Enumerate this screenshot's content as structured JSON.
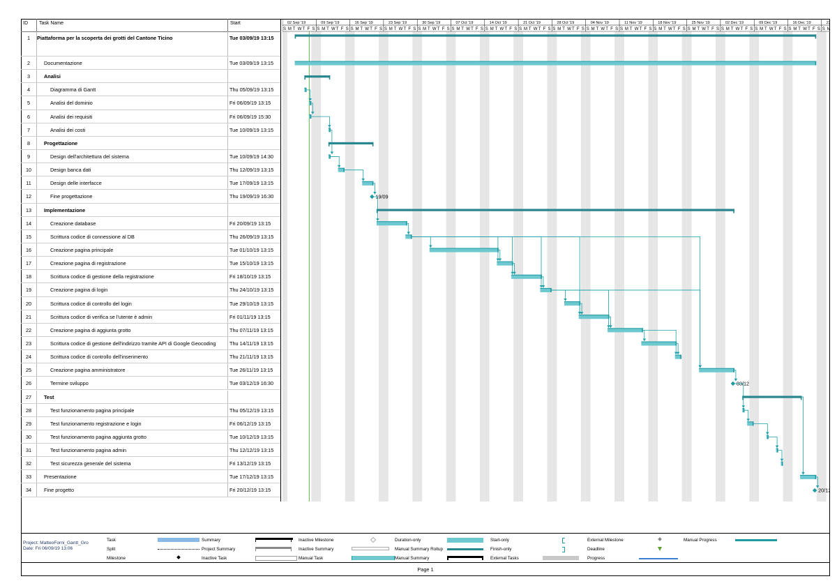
{
  "table": {
    "headers": {
      "id": "ID",
      "name": "Task Name",
      "start": "Start"
    },
    "rows": [
      {
        "id": "1",
        "name": "Piattaforma per la scoperta dei grotti del Cantone Ticino",
        "start": "Tue 03/09/19 13:15",
        "level": 0,
        "bold": true
      },
      {
        "id": "2",
        "name": "Documentazione",
        "start": "Tue 03/09/19 13:15",
        "level": 1,
        "bold": false
      },
      {
        "id": "3",
        "name": "Analisi",
        "start": "",
        "level": 1,
        "bold": true
      },
      {
        "id": "4",
        "name": "Diagramma di Gantt",
        "start": "Thu 05/09/19 13:15",
        "level": 2,
        "bold": false
      },
      {
        "id": "5",
        "name": "Analisi del dominio",
        "start": "Fri 06/09/19 13:15",
        "level": 2,
        "bold": false
      },
      {
        "id": "6",
        "name": "Analisi dei requisiti",
        "start": "Fri 06/09/19 15:30",
        "level": 2,
        "bold": false
      },
      {
        "id": "7",
        "name": "Analisi dei costi",
        "start": "Tue 10/09/19 13:15",
        "level": 2,
        "bold": false
      },
      {
        "id": "8",
        "name": "Progettazione",
        "start": "",
        "level": 1,
        "bold": true
      },
      {
        "id": "9",
        "name": "Design dell'architettura del sistema",
        "start": "Tue 10/09/19 14:30",
        "level": 2,
        "bold": false
      },
      {
        "id": "10",
        "name": "Design banca dati",
        "start": "Thu 12/09/19 13:15",
        "level": 2,
        "bold": false
      },
      {
        "id": "11",
        "name": "Design delle interfacce",
        "start": "Tue 17/09/19 13:15",
        "level": 2,
        "bold": false
      },
      {
        "id": "12",
        "name": "Fine progettazione",
        "start": "Thu 19/09/19 16:30",
        "level": 2,
        "bold": false
      },
      {
        "id": "13",
        "name": "Implementazione",
        "start": "",
        "level": 1,
        "bold": true
      },
      {
        "id": "14",
        "name": "Creazione database",
        "start": "Fri 20/09/19 13:15",
        "level": 2,
        "bold": false
      },
      {
        "id": "15",
        "name": "Scrittura codice di connessione al DB",
        "start": "Thu 26/09/19 13:15",
        "level": 2,
        "bold": false
      },
      {
        "id": "16",
        "name": "Creazione pagina principale",
        "start": "Tue 01/10/19 13:15",
        "level": 2,
        "bold": false
      },
      {
        "id": "17",
        "name": "Creazione pagina di registrazione",
        "start": "Tue 15/10/19 13:15",
        "level": 2,
        "bold": false
      },
      {
        "id": "18",
        "name": "Scrittura codice di gestione della registrazione",
        "start": "Fri 18/10/19 13:15",
        "level": 2,
        "bold": false
      },
      {
        "id": "19",
        "name": "Creazione pagina di login",
        "start": "Thu 24/10/19 13:15",
        "level": 2,
        "bold": false
      },
      {
        "id": "20",
        "name": "Scrittura codice di controllo del login",
        "start": "Tue 29/10/19 13:15",
        "level": 2,
        "bold": false
      },
      {
        "id": "21",
        "name": "Scrittura codice di verifica se l'utente è admin",
        "start": "Fri 01/11/19 13:15",
        "level": 2,
        "bold": false
      },
      {
        "id": "22",
        "name": "Creazione pagina di aggiunta grotto",
        "start": "Thu 07/11/19 13:15",
        "level": 2,
        "bold": false
      },
      {
        "id": "23",
        "name": "Scrittura codice di gestione dell'indirizzo tramite API di Google Geocoding",
        "start": "Thu 14/11/19 13:15",
        "level": 2,
        "bold": false
      },
      {
        "id": "24",
        "name": "Scrittura codice di controllo dell'inserimento",
        "start": "Thu 21/11/19 13:15",
        "level": 2,
        "bold": false
      },
      {
        "id": "25",
        "name": "Creazione pagina amministratore",
        "start": "Tue 26/11/19 13:15",
        "level": 2,
        "bold": false
      },
      {
        "id": "26",
        "name": "Termine sviluppo",
        "start": "Tue 03/12/19 16:30",
        "level": 2,
        "bold": false
      },
      {
        "id": "27",
        "name": "Test",
        "start": "",
        "level": 1,
        "bold": true
      },
      {
        "id": "28",
        "name": "Test funzionamento pagina principale",
        "start": "Thu 05/12/19 13:15",
        "level": 2,
        "bold": false
      },
      {
        "id": "29",
        "name": "Test funzionamento registrazione e login",
        "start": "Fri 06/12/19 13:15",
        "level": 2,
        "bold": false
      },
      {
        "id": "30",
        "name": "Test funzionamento pagina aggiunta grotto",
        "start": "Tue 10/12/19 13:15",
        "level": 2,
        "bold": false
      },
      {
        "id": "31",
        "name": "Test funzionamento pagina admin",
        "start": "Thu 12/12/19 13:15",
        "level": 2,
        "bold": false
      },
      {
        "id": "32",
        "name": "Test sicurezza generale del sistema",
        "start": "Fri 13/12/19 13:15",
        "level": 2,
        "bold": false
      },
      {
        "id": "33",
        "name": "Presentazione",
        "start": "Tue 17/12/19 13:15",
        "level": 1,
        "bold": false
      },
      {
        "id": "34",
        "name": "Fine progetto",
        "start": "Fri 20/12/19 13:15",
        "level": 1,
        "bold": false
      }
    ]
  },
  "timeline": {
    "weeks": [
      "02 Sep '19",
      "09 Sep '19",
      "16 Sep '19",
      "23 Sep '19",
      "30 Sep '19",
      "07 Oct '19",
      "14 Oct '19",
      "21 Oct '19",
      "28 Oct '19",
      "04 Nov '19",
      "11 Nov '19",
      "18 Nov '19",
      "25 Nov '19",
      "02 Dec '19",
      "09 Dec '19",
      "16 Dec '19",
      "23"
    ],
    "day_letters": [
      "S",
      "M",
      "T",
      "W",
      "T",
      "F",
      "S"
    ],
    "first_day": "2019-09-01",
    "status_date": "2019-09-06"
  },
  "gantt": {
    "bars": [
      {
        "row": 1,
        "kind": "summary",
        "start": "2019-09-03",
        "finish": "2019-12-20"
      },
      {
        "row": 2,
        "kind": "task",
        "start": "2019-09-03",
        "finish": "2019-12-20"
      },
      {
        "row": 3,
        "kind": "summary",
        "start": "2019-09-05",
        "finish": "2019-09-10"
      },
      {
        "row": 4,
        "kind": "task",
        "start": "2019-09-05",
        "finish": "2019-09-05"
      },
      {
        "row": 5,
        "kind": "task",
        "start": "2019-09-06",
        "finish": "2019-09-06"
      },
      {
        "row": 6,
        "kind": "task",
        "start": "2019-09-06",
        "finish": "2019-09-06"
      },
      {
        "row": 7,
        "kind": "task",
        "start": "2019-09-10",
        "finish": "2019-09-10"
      },
      {
        "row": 8,
        "kind": "summary",
        "start": "2019-09-10",
        "finish": "2019-09-19"
      },
      {
        "row": 9,
        "kind": "task",
        "start": "2019-09-10",
        "finish": "2019-09-10"
      },
      {
        "row": 10,
        "kind": "task",
        "start": "2019-09-12",
        "finish": "2019-09-13"
      },
      {
        "row": 11,
        "kind": "task",
        "start": "2019-09-17",
        "finish": "2019-09-19"
      },
      {
        "row": 12,
        "kind": "milestone",
        "start": "2019-09-19",
        "label": "19/09"
      },
      {
        "row": 13,
        "kind": "summary",
        "start": "2019-09-20",
        "finish": "2019-12-03"
      },
      {
        "row": 14,
        "kind": "task",
        "start": "2019-09-20",
        "finish": "2019-09-26"
      },
      {
        "row": 15,
        "kind": "task",
        "start": "2019-09-26",
        "finish": "2019-09-27"
      },
      {
        "row": 16,
        "kind": "task",
        "start": "2019-10-01",
        "finish": "2019-10-15"
      },
      {
        "row": 17,
        "kind": "task",
        "start": "2019-10-15",
        "finish": "2019-10-18"
      },
      {
        "row": 18,
        "kind": "task",
        "start": "2019-10-18",
        "finish": "2019-10-24"
      },
      {
        "row": 19,
        "kind": "task",
        "start": "2019-10-24",
        "finish": "2019-10-26"
      },
      {
        "row": 20,
        "kind": "task",
        "start": "2019-10-29",
        "finish": "2019-11-01"
      },
      {
        "row": 21,
        "kind": "task",
        "start": "2019-11-01",
        "finish": "2019-11-07"
      },
      {
        "row": 22,
        "kind": "task",
        "start": "2019-11-07",
        "finish": "2019-11-14"
      },
      {
        "row": 23,
        "kind": "task",
        "start": "2019-11-14",
        "finish": "2019-11-21"
      },
      {
        "row": 24,
        "kind": "task",
        "start": "2019-11-21",
        "finish": "2019-11-22"
      },
      {
        "row": 25,
        "kind": "task",
        "start": "2019-11-26",
        "finish": "2019-12-03"
      },
      {
        "row": 26,
        "kind": "milestone",
        "start": "2019-12-03",
        "label": "03/12"
      },
      {
        "row": 27,
        "kind": "summary",
        "start": "2019-12-05",
        "finish": "2019-12-17"
      },
      {
        "row": 28,
        "kind": "task",
        "start": "2019-12-05",
        "finish": "2019-12-05"
      },
      {
        "row": 29,
        "kind": "task",
        "start": "2019-12-06",
        "finish": "2019-12-07"
      },
      {
        "row": 30,
        "kind": "task",
        "start": "2019-12-10",
        "finish": "2019-12-10"
      },
      {
        "row": 31,
        "kind": "task",
        "start": "2019-12-12",
        "finish": "2019-12-12"
      },
      {
        "row": 32,
        "kind": "task",
        "start": "2019-12-13",
        "finish": "2019-12-13"
      },
      {
        "row": 33,
        "kind": "task",
        "start": "2019-12-17",
        "finish": "2019-12-20"
      },
      {
        "row": 34,
        "kind": "milestone",
        "start": "2019-12-20",
        "label": "20/12"
      }
    ],
    "links": [
      [
        4,
        5
      ],
      [
        5,
        6
      ],
      [
        6,
        7
      ],
      [
        7,
        9
      ],
      [
        9,
        10
      ],
      [
        10,
        11
      ],
      [
        11,
        12
      ],
      [
        12,
        14
      ],
      [
        14,
        15
      ],
      [
        15,
        16
      ],
      [
        15,
        17
      ],
      [
        15,
        18
      ],
      [
        15,
        19
      ],
      [
        15,
        21
      ],
      [
        15,
        25
      ],
      [
        16,
        17
      ],
      [
        17,
        18
      ],
      [
        18,
        19
      ],
      [
        19,
        20
      ],
      [
        19,
        21
      ],
      [
        19,
        22
      ],
      [
        19,
        25
      ],
      [
        20,
        21
      ],
      [
        21,
        22
      ],
      [
        22,
        23
      ],
      [
        22,
        24
      ],
      [
        23,
        24
      ],
      [
        25,
        26
      ],
      [
        26,
        28
      ],
      [
        28,
        29
      ],
      [
        29,
        30
      ],
      [
        30,
        31
      ],
      [
        31,
        32
      ],
      [
        27,
        33
      ],
      [
        33,
        34
      ]
    ]
  },
  "legend": {
    "project": "Project: MatteoForni_Gantt_Gro",
    "date": "Date: Fri 06/09/19 13:06",
    "items": [
      {
        "label": "Task",
        "sym": "task"
      },
      {
        "label": "Split",
        "sym": "split"
      },
      {
        "label": "Milestone",
        "sym": "milestone"
      },
      {
        "label": "Summary",
        "sym": "summary"
      },
      {
        "label": "Project Summary",
        "sym": "project-summary"
      },
      {
        "label": "Inactive Task",
        "sym": "inactive-task"
      },
      {
        "label": "Inactive Milestone",
        "sym": "inactive-milestone"
      },
      {
        "label": "Inactive Summary",
        "sym": "inactive-summary"
      },
      {
        "label": "Manual Task",
        "sym": "manual-task"
      },
      {
        "label": "Duration-only",
        "sym": "duration-only"
      },
      {
        "label": "Manual Summary Rollup",
        "sym": "manual-summary-rollup"
      },
      {
        "label": "Manual Summary",
        "sym": "manual-summary"
      },
      {
        "label": "Start-only",
        "sym": "start-only"
      },
      {
        "label": "Finish-only",
        "sym": "finish-only"
      },
      {
        "label": "External Tasks",
        "sym": "external-tasks"
      },
      {
        "label": "External Milestone",
        "sym": "external-milestone"
      },
      {
        "label": "Deadline",
        "sym": "deadline"
      },
      {
        "label": "Progress",
        "sym": "progress"
      },
      {
        "label": "Manual Progress",
        "sym": "manual-progress"
      }
    ]
  },
  "footer": {
    "page": "Page 1"
  },
  "colors": {
    "task": "#6dc8cf",
    "task_dark": "#1e9aa2",
    "summary": "#27868e",
    "link": "#1aa0a8",
    "weekend": "#e6e6e6",
    "status_line": "#55a640",
    "legend_task": "#88b8e6",
    "progress_blue": "#3a7fd0",
    "deadline": "#5aa02c"
  }
}
